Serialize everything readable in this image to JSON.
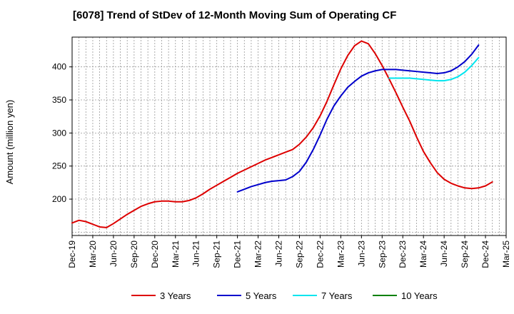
{
  "chart_data": {
    "type": "line",
    "title": "[6078]  Trend of StDev of 12-Month Moving Sum of Operating CF",
    "xlabel": "",
    "ylabel": "Amount (million yen)",
    "ylim": [
      145,
      445
    ],
    "yticks": [
      200,
      250,
      300,
      350,
      400
    ],
    "grid": true,
    "legend_position": "bottom",
    "x_tick_labels": [
      "Dec-19",
      "Mar-20",
      "Jun-20",
      "Sep-20",
      "Dec-20",
      "Mar-21",
      "Jun-21",
      "Sep-21",
      "Dec-21",
      "Mar-22",
      "Jun-22",
      "Sep-22",
      "Dec-22",
      "Mar-23",
      "Jun-23",
      "Sep-23",
      "Dec-23",
      "Mar-24",
      "Jun-24",
      "Sep-24",
      "Dec-24",
      "Mar-25"
    ],
    "x_months": [
      "2019-12",
      "2020-01",
      "2020-02",
      "2020-03",
      "2020-04",
      "2020-05",
      "2020-06",
      "2020-07",
      "2020-08",
      "2020-09",
      "2020-10",
      "2020-11",
      "2020-12",
      "2021-01",
      "2021-02",
      "2021-03",
      "2021-04",
      "2021-05",
      "2021-06",
      "2021-07",
      "2021-08",
      "2021-09",
      "2021-10",
      "2021-11",
      "2021-12",
      "2022-01",
      "2022-02",
      "2022-03",
      "2022-04",
      "2022-05",
      "2022-06",
      "2022-07",
      "2022-08",
      "2022-09",
      "2022-10",
      "2022-11",
      "2022-12",
      "2023-01",
      "2023-02",
      "2023-03",
      "2023-04",
      "2023-05",
      "2023-06",
      "2023-07",
      "2023-08",
      "2023-09",
      "2023-10",
      "2023-11",
      "2023-12",
      "2024-01",
      "2024-02",
      "2024-03",
      "2024-04",
      "2024-05",
      "2024-06",
      "2024-07",
      "2024-08",
      "2024-09",
      "2024-10",
      "2024-11",
      "2024-12",
      "2025-01",
      "2025-02",
      "2025-03"
    ],
    "series": [
      {
        "name": "3 Years",
        "color": "#dd0000",
        "values": [
          164,
          168,
          166,
          162,
          158,
          157,
          163,
          170,
          177,
          183,
          189,
          193,
          196,
          197,
          197,
          196,
          196,
          198,
          202,
          208,
          215,
          221,
          227,
          233,
          239,
          244,
          249,
          254,
          259,
          263,
          267,
          271,
          275,
          283,
          294,
          308,
          326,
          348,
          373,
          397,
          417,
          432,
          439,
          435,
          420,
          402,
          382,
          361,
          339,
          318,
          294,
          272,
          255,
          240,
          230,
          224,
          220,
          217,
          216,
          217,
          220,
          226,
          null,
          null
        ]
      },
      {
        "name": "5 Years",
        "color": "#0000cc",
        "values": [
          null,
          null,
          null,
          null,
          null,
          null,
          null,
          null,
          null,
          null,
          null,
          null,
          null,
          null,
          null,
          null,
          null,
          null,
          null,
          null,
          null,
          null,
          null,
          null,
          211,
          215,
          219,
          222,
          225,
          227,
          228,
          229,
          234,
          242,
          256,
          275,
          297,
          321,
          341,
          356,
          369,
          378,
          386,
          391,
          394,
          396,
          396,
          396,
          395,
          394,
          393,
          392,
          391,
          390,
          391,
          394,
          400,
          408,
          419,
          433,
          null,
          null,
          null,
          null
        ]
      },
      {
        "name": "7 Years",
        "color": "#00e5ee",
        "values": [
          null,
          null,
          null,
          null,
          null,
          null,
          null,
          null,
          null,
          null,
          null,
          null,
          null,
          null,
          null,
          null,
          null,
          null,
          null,
          null,
          null,
          null,
          null,
          null,
          null,
          null,
          null,
          null,
          null,
          null,
          null,
          null,
          null,
          null,
          null,
          null,
          null,
          null,
          null,
          null,
          null,
          null,
          null,
          null,
          null,
          null,
          383,
          383,
          383,
          383,
          382,
          381,
          380,
          379,
          379,
          381,
          385,
          392,
          402,
          414,
          null,
          null,
          null,
          null
        ]
      },
      {
        "name": "10 Years",
        "color": "#008000",
        "values": []
      }
    ]
  }
}
